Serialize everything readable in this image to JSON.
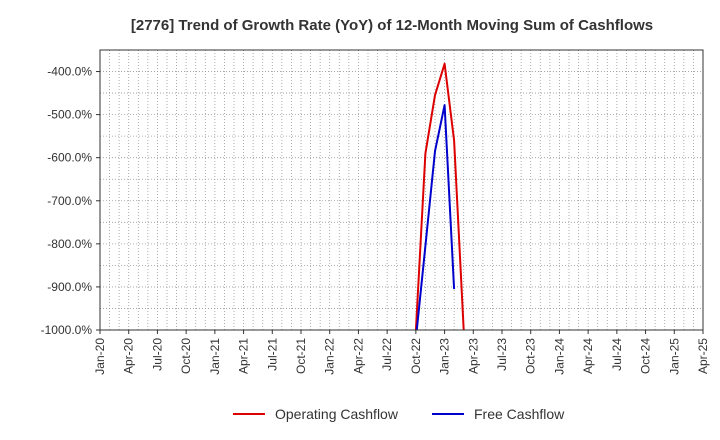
{
  "chart_data": {
    "type": "line",
    "title": "[2776]  Trend of Growth Rate (YoY) of 12-Month Moving Sum of Cashflows",
    "xlabel": "",
    "ylabel": "",
    "ylim": [
      -1000,
      -350
    ],
    "y_ticks": [
      -400,
      -500,
      -600,
      -700,
      -800,
      -900,
      -1000
    ],
    "y_tick_labels": [
      "-400.0%",
      "-500.0%",
      "-600.0%",
      "-700.0%",
      "-800.0%",
      "-900.0%",
      "-1000.0%"
    ],
    "x_tick_labels": [
      "Jan-20",
      "Apr-20",
      "Jul-20",
      "Oct-20",
      "Jan-21",
      "Apr-21",
      "Jul-21",
      "Oct-21",
      "Jan-22",
      "Apr-22",
      "Jul-22",
      "Oct-22",
      "Jan-23",
      "Apr-23",
      "Jul-23",
      "Oct-23",
      "Jan-24",
      "Apr-24",
      "Jul-24",
      "Oct-24",
      "Jan-25",
      "Apr-25"
    ],
    "grid": true,
    "legend_position": "bottom",
    "series": [
      {
        "name": "Operating Cashflow",
        "color": "#dd0000",
        "points": [
          {
            "x": "Sep-22",
            "y": -1020
          },
          {
            "x": "Oct-22",
            "y": -1000
          },
          {
            "x": "Nov-22",
            "y": -590
          },
          {
            "x": "Dec-22",
            "y": -455
          },
          {
            "x": "Jan-23",
            "y": -382
          },
          {
            "x": "Feb-23",
            "y": -560
          },
          {
            "x": "Mar-23",
            "y": -1000
          }
        ]
      },
      {
        "name": "Free Cashflow",
        "color": "#0000cc",
        "points": [
          {
            "x": "Oct-22",
            "y": -1020
          },
          {
            "x": "Nov-22",
            "y": -805
          },
          {
            "x": "Dec-22",
            "y": -585
          },
          {
            "x": "Jan-23",
            "y": -478
          },
          {
            "x": "Feb-23",
            "y": -905
          }
        ]
      }
    ]
  }
}
